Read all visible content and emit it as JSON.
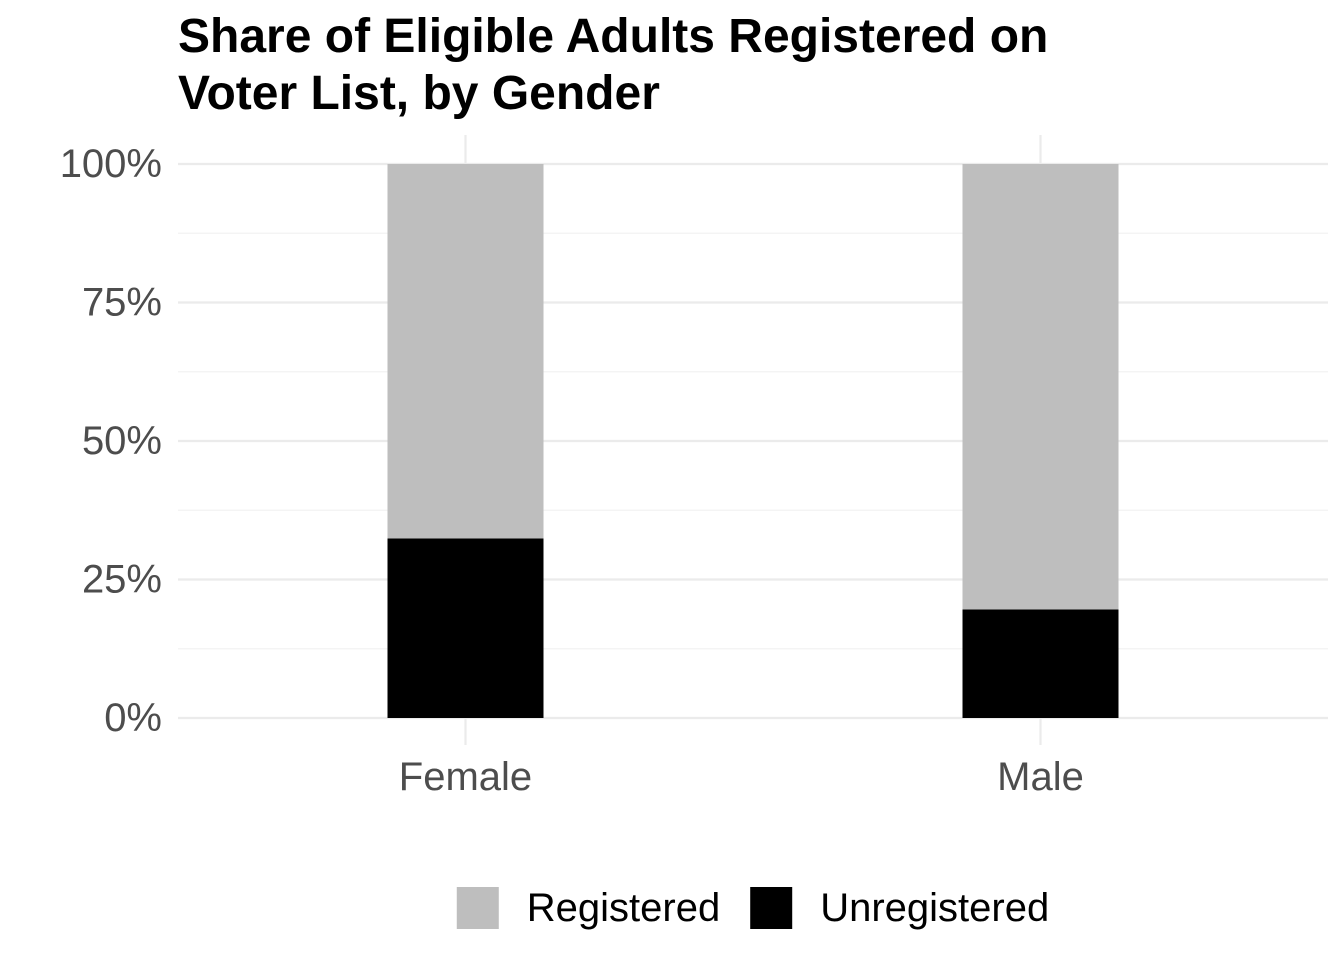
{
  "chart_data": {
    "type": "bar",
    "stacked": true,
    "title_lines": [
      "Share of Eligible Adults Registered on",
      "Voter List, by Gender"
    ],
    "xlabel": "",
    "ylabel": "",
    "categories": [
      "Female",
      "Male"
    ],
    "series": [
      {
        "name": "Registered",
        "values": [
          67.6,
          80.4
        ],
        "color": "#bebebe"
      },
      {
        "name": "Unregistered",
        "values": [
          32.4,
          19.6
        ],
        "color": "#000000"
      }
    ],
    "ylim": [
      0,
      100
    ],
    "y_ticks": [
      0,
      25,
      50,
      75,
      100
    ],
    "y_tick_labels": [
      "0%",
      "25%",
      "50%",
      "75%",
      "100%"
    ],
    "grid": true,
    "legend_position": "bottom",
    "legend": {
      "items": [
        {
          "label": "Registered",
          "color": "#bebebe"
        },
        {
          "label": "Unregistered",
          "color": "#000000"
        }
      ]
    }
  }
}
